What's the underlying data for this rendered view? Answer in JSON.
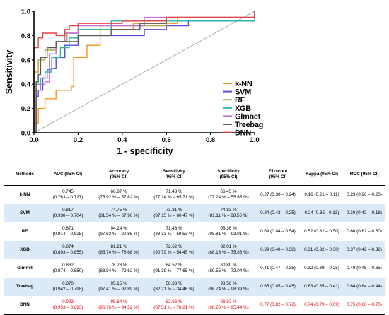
{
  "chart_data": {
    "type": "line",
    "xlabel": "1 - specificity",
    "ylabel": "Sensitivity",
    "xlim": [
      0,
      1
    ],
    "ylim": [
      0,
      1
    ],
    "xticks": [
      "0.0",
      "0.2",
      "0.4",
      "0.6",
      "0.8",
      "1.0"
    ],
    "yticks": [
      "0.0",
      "0.2",
      "0.4",
      "0.6",
      "0.8",
      "1.0"
    ],
    "grid": false,
    "legend": "right",
    "diagonal_reference": true,
    "series": [
      {
        "name": "k-NN",
        "color": "#f7941d",
        "points": [
          [
            0,
            0
          ],
          [
            0,
            0.08
          ],
          [
            0.02,
            0.2
          ],
          [
            0.05,
            0.28
          ],
          [
            0.08,
            0.28
          ],
          [
            0.1,
            0.35
          ],
          [
            0.15,
            0.35
          ],
          [
            0.17,
            0.38
          ],
          [
            0.18,
            0.62
          ],
          [
            0.22,
            0.62
          ],
          [
            0.24,
            0.72
          ],
          [
            0.3,
            0.72
          ],
          [
            0.3,
            0.85
          ],
          [
            0.4,
            0.85
          ],
          [
            0.45,
            0.9
          ],
          [
            0.65,
            0.95
          ],
          [
            1,
            1
          ]
        ]
      },
      {
        "name": "SVM",
        "color": "#5b4bdc",
        "points": [
          [
            0,
            0
          ],
          [
            0.01,
            0.3
          ],
          [
            0.02,
            0.35
          ],
          [
            0.04,
            0.45
          ],
          [
            0.06,
            0.52
          ],
          [
            0.08,
            0.53
          ],
          [
            0.1,
            0.62
          ],
          [
            0.12,
            0.62
          ],
          [
            0.14,
            0.72
          ],
          [
            0.18,
            0.72
          ],
          [
            0.2,
            0.8
          ],
          [
            0.4,
            0.8
          ],
          [
            0.48,
            0.8
          ],
          [
            0.5,
            0.85
          ],
          [
            0.6,
            0.88
          ],
          [
            0.7,
            0.92
          ],
          [
            1,
            1
          ]
        ]
      },
      {
        "name": "RF",
        "color": "#b5a642",
        "points": [
          [
            0,
            0
          ],
          [
            0,
            0.5
          ],
          [
            0.02,
            0.6
          ],
          [
            0.05,
            0.68
          ],
          [
            0.1,
            0.75
          ],
          [
            0.15,
            0.82
          ],
          [
            0.2,
            0.85
          ],
          [
            0.3,
            0.88
          ],
          [
            0.6,
            0.95
          ],
          [
            1,
            1
          ]
        ]
      },
      {
        "name": "XGB",
        "color": "#2ab5a8",
        "points": [
          [
            0,
            0
          ],
          [
            0.01,
            0.4
          ],
          [
            0.03,
            0.45
          ],
          [
            0.05,
            0.5
          ],
          [
            0.08,
            0.62
          ],
          [
            0.12,
            0.7
          ],
          [
            0.16,
            0.78
          ],
          [
            0.2,
            0.85
          ],
          [
            0.35,
            0.92
          ],
          [
            1,
            1
          ]
        ]
      },
      {
        "name": "Glmnet",
        "color": "#c86dd7",
        "points": [
          [
            0,
            0
          ],
          [
            0.01,
            0.35
          ],
          [
            0.03,
            0.4
          ],
          [
            0.05,
            0.42
          ],
          [
            0.07,
            0.65
          ],
          [
            0.1,
            0.75
          ],
          [
            0.14,
            0.82
          ],
          [
            0.2,
            0.88
          ],
          [
            0.5,
            0.95
          ],
          [
            1,
            1
          ]
        ]
      },
      {
        "name": "Treebag",
        "color": "#595959",
        "points": [
          [
            0,
            0
          ],
          [
            0.01,
            0.42
          ],
          [
            0.02,
            0.48
          ],
          [
            0.03,
            0.62
          ],
          [
            0.06,
            0.7
          ],
          [
            0.1,
            0.75
          ],
          [
            0.2,
            0.8
          ],
          [
            0.35,
            0.85
          ],
          [
            0.48,
            0.9
          ],
          [
            0.6,
            0.95
          ],
          [
            1,
            1
          ]
        ]
      },
      {
        "name": "DNN",
        "color": "#e8424a",
        "points": [
          [
            0,
            0
          ],
          [
            0,
            0.7
          ],
          [
            0.02,
            0.78
          ],
          [
            0.04,
            0.82
          ],
          [
            0.08,
            0.82
          ],
          [
            0.1,
            0.8
          ],
          [
            0.12,
            0.8
          ],
          [
            0.14,
            0.85
          ],
          [
            0.16,
            0.88
          ],
          [
            0.2,
            0.9
          ],
          [
            0.4,
            0.92
          ],
          [
            0.6,
            0.95
          ],
          [
            1,
            1
          ]
        ]
      }
    ]
  },
  "table": {
    "headers": [
      [
        "Methods"
      ],
      [
        "AUC (95% CI)"
      ],
      [
        "Accuracy",
        "(95% CI)"
      ],
      [
        "Sensitivity",
        "(95% CI)"
      ],
      [
        "Specificity",
        "(95% CI)"
      ],
      [
        "F1-score",
        "(95% CI)"
      ],
      [
        "Kappa (95% CI)"
      ],
      [
        "MCC (95% CI)"
      ]
    ],
    "rows": [
      {
        "method": "k-NN",
        "cells": [
          [
            "0.745",
            "(0.763 – 0.727)"
          ],
          [
            "66.87 %",
            "(75.92 % – 57.82 %)"
          ],
          [
            "71.43 %",
            "(77.14 % – 65.71 %)"
          ],
          [
            "66.45 %",
            "(77.24 % – 55.65 %)"
          ],
          [
            "0.27 (0.30 – 0.24)"
          ],
          [
            "0.16 (0.21 – 0.11)"
          ],
          [
            "0.23 (0.26 – 0.20)"
          ]
        ]
      },
      {
        "method": "SVM",
        "cells": [
          [
            "0.817",
            "(0.930 – 0.704)"
          ],
          [
            "74.75 %",
            "(81.54 % – 67.96 %)"
          ],
          [
            "73.81 %",
            "(87.15 % – 60.47 %)"
          ],
          [
            "74.83 %",
            "(81.11 % – 68.56 %)"
          ],
          [
            "0.34 (0.43 – 0.25)"
          ],
          [
            "0.24 (0.35- -0.13)"
          ],
          [
            "0.30 (0.42– -0.18)"
          ]
        ]
      },
      {
        "method": "RF",
        "cells": [
          [
            "0.871",
            "(0.914 – 0.828)"
          ],
          [
            "94.24 %",
            "(97.63 % – 90.85 %)"
          ],
          [
            "71.43 %",
            "(83.33 % – 59.53 %)"
          ],
          [
            "96.36 %",
            "(98.81 % – 93.91 %)"
          ],
          [
            "0.69 (0.84 – 0.54)"
          ],
          [
            "0.52 (0.82 – 0.50)"
          ],
          [
            "0.66 (0.82 – 0.50)"
          ]
        ]
      },
      {
        "method": "XGB",
        "cells": [
          [
            "0.874",
            "(0.893 – 0.855)"
          ],
          [
            "81.21 %",
            "(85.74 % – 76.68 %)"
          ],
          [
            "72.62 %",
            "(90.79 % – 54.45 %)"
          ],
          [
            "82.01 %",
            "(88.16 % – 75.86 %)"
          ],
          [
            "0.39 (0.40 – 0.38)"
          ],
          [
            "0.31 (0.32 – 0.30)"
          ],
          [
            "0.37 (0.42 – 0.32)"
          ]
        ]
      },
      {
        "method": "Glmnet",
        "cells": [
          [
            "0.862",
            "(0.874 – 0.850)"
          ],
          [
            "78.28 %",
            "(83.94 % – 72.62 %)"
          ],
          [
            "84.52 %",
            "(91.39 % – 77.65 %)"
          ],
          [
            "80.80 %",
            "(89.55 % – 72.04 %)"
          ],
          [
            "0.41 (0.47 – 0.35)"
          ],
          [
            "0.32 (0.39 – 0.25)"
          ],
          [
            "0.40 (0.45 – 0.35)"
          ]
        ]
      },
      {
        "method": "Treebag",
        "cells": [
          [
            "0.870",
            "(0.942 – 0.798)"
          ],
          [
            "95.15 %",
            "(97.41 % – 92.89 %)"
          ],
          [
            "58.33 %",
            "(82.21 % – 34.46 %)"
          ],
          [
            "98.56 %",
            "(98.74 % – 98.39 %)"
          ],
          [
            "0.65 (0.85 – 0.45)"
          ],
          [
            "0.63 (0.85 – 0.41)"
          ],
          [
            "0.64 (0.84 – 0.44)"
          ]
        ]
      },
      {
        "method": "DNN",
        "cells": [
          [
            "0.923",
            "(0.953 – 0.893)"
          ],
          [
            "95.64 %",
            "(96.76 % – 94.52 %)"
          ],
          [
            "82.86 %",
            "(87.51 % – 78.21 %)"
          ],
          [
            "96.82 %",
            "(98.20 % – 95.44 %)"
          ],
          [
            "0.77 (0.82 – 0.72)"
          ],
          [
            "0.74 (0.79 – 0.69)"
          ],
          [
            "0.75 (0.80 – 0.70)"
          ]
        ]
      }
    ]
  }
}
